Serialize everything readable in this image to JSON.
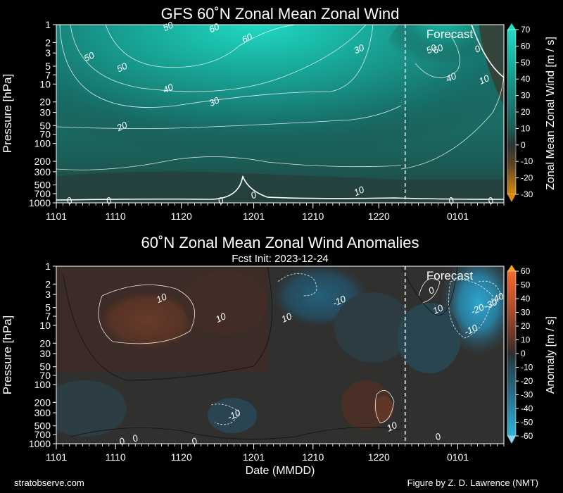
{
  "footer": {
    "left": "stratobserve.com",
    "right": "Figure by Z. D. Lawrence (NMT)"
  },
  "colors": {
    "background": "#000000",
    "wind_high": "#1fd6c0",
    "wind_low": "#1e4c48",
    "wind_negative": "#d98a12",
    "anom_positive": "#f06a2c",
    "anom_negative": "#2a9bb8"
  },
  "chart_data": [
    {
      "type": "heatmap",
      "title": "GFS 60˚N Zonal Mean Zonal Wind",
      "ylabel": "Pressure [hPa]",
      "xlabel": "",
      "y_scale": "log",
      "y_inverted": true,
      "ylim": [
        1000,
        1
      ],
      "y_ticks": [
        1,
        2,
        3,
        5,
        7,
        10,
        20,
        30,
        50,
        70,
        100,
        200,
        300,
        500,
        700,
        1000
      ],
      "x_ticks": [
        "1101",
        "1110",
        "1120",
        "1201",
        "1210",
        "1220",
        "0101"
      ],
      "xlim": [
        "2023-11-01",
        "2024-01-08"
      ],
      "forecast_init": "2023-12-24",
      "forecast_label": "Forecast",
      "colorbar": {
        "label": "Zonal Mean Zonal Wind [m / s]",
        "ticks": [
          70,
          60,
          50,
          40,
          30,
          20,
          10,
          0,
          -10,
          -20,
          -30
        ],
        "range": [
          -30,
          70
        ]
      },
      "contours": [
        {
          "level": 60,
          "date": "2023-11-30",
          "p": 1.7
        },
        {
          "level": 60,
          "date": "2023-11-25",
          "p": 1.15
        },
        {
          "level": 60,
          "date": "2023-12-29",
          "p": 2.6
        },
        {
          "level": 50,
          "date": "2023-11-06",
          "p": 3.5
        },
        {
          "level": 50,
          "date": "2023-11-11",
          "p": 5.3
        },
        {
          "level": 50,
          "date": "2023-11-18",
          "p": 1.08
        },
        {
          "level": 50,
          "date": "2023-12-28",
          "p": 2.6
        },
        {
          "level": 40,
          "date": "2023-11-18",
          "p": 12
        },
        {
          "level": 40,
          "date": "2023-12-31",
          "p": 7.8
        },
        {
          "level": 30,
          "date": "2023-11-25",
          "p": 20
        },
        {
          "level": 30,
          "date": "2023-12-17",
          "p": 2.6
        },
        {
          "level": 20,
          "date": "2023-11-11",
          "p": 52
        },
        {
          "level": 10,
          "date": "2024-01-05",
          "p": 8.5
        },
        {
          "level": 10,
          "date": "2023-12-17",
          "p": 640
        },
        {
          "level": 0,
          "date": "2024-01-04",
          "p": 2.6
        },
        {
          "level": 0,
          "date": "2023-11-03",
          "p": 930
        },
        {
          "level": 0,
          "date": "2023-11-09",
          "p": 930
        },
        {
          "level": 0,
          "date": "2023-12-01",
          "p": 750
        },
        {
          "level": 0,
          "date": "2023-11-26",
          "p": 930
        },
        {
          "level": 0,
          "date": "2023-12-31",
          "p": 930
        },
        {
          "level": 0,
          "date": "2024-01-06",
          "p": 930
        }
      ]
    },
    {
      "type": "heatmap",
      "title": "60˚N Zonal Mean Zonal Wind Anomalies",
      "subtitle": "Fcst Init: 2023-12-24",
      "ylabel": "Pressure [hPa]",
      "xlabel": "Date (MMDD)",
      "y_scale": "log",
      "y_inverted": true,
      "ylim": [
        1000,
        1
      ],
      "y_ticks": [
        1,
        2,
        3,
        5,
        7,
        10,
        20,
        30,
        50,
        70,
        100,
        200,
        300,
        500,
        700,
        1000
      ],
      "x_ticks": [
        "1101",
        "1110",
        "1120",
        "1201",
        "1210",
        "1220",
        "0101"
      ],
      "xlim": [
        "2023-11-01",
        "2024-01-08"
      ],
      "forecast_init": "2023-12-24",
      "forecast_label": "Forecast",
      "colorbar": {
        "label": "Anomaly [m / s]",
        "ticks": [
          60,
          50,
          40,
          30,
          20,
          10,
          0,
          -10,
          -20,
          -30,
          -40,
          -50,
          -60
        ],
        "range": [
          -60,
          60
        ]
      },
      "contours": [
        {
          "level": 10,
          "date": "2023-11-17",
          "p": 3.5
        },
        {
          "level": 10,
          "date": "2023-11-26",
          "p": 7.5
        },
        {
          "level": 10,
          "date": "2023-12-06",
          "p": 7.5
        },
        {
          "level": -10,
          "date": "2023-12-14",
          "p": 3.9
        },
        {
          "level": 0,
          "date": "2023-12-28",
          "p": 2.6
        },
        {
          "level": 10,
          "date": "2023-12-29",
          "p": 5.4
        },
        {
          "level": -20,
          "date": "2024-01-04",
          "p": 5.4
        },
        {
          "level": -30,
          "date": "2024-01-06",
          "p": 4.4
        },
        {
          "level": -40,
          "date": "2024-01-07",
          "p": 3.5
        },
        {
          "level": -10,
          "date": "2024-01-03",
          "p": 12
        },
        {
          "level": -10,
          "date": "2023-11-28",
          "p": 330
        },
        {
          "level": 10,
          "date": "2023-12-22",
          "p": 520
        },
        {
          "level": 0,
          "date": "2023-11-11",
          "p": 920
        },
        {
          "level": 0,
          "date": "2023-11-13",
          "p": 820
        },
        {
          "level": 0,
          "date": "2023-11-22",
          "p": 920
        },
        {
          "level": 0,
          "date": "2023-12-29",
          "p": 770
        }
      ]
    }
  ]
}
